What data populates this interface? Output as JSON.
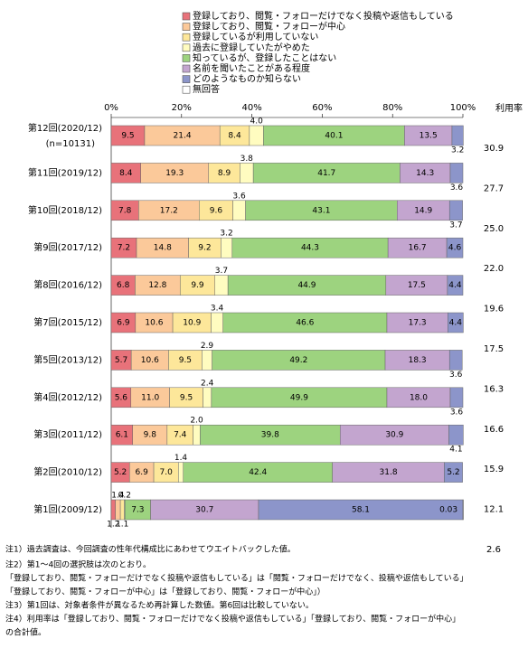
{
  "chart_data": {
    "type": "stacked-bar-horizontal",
    "categories": [
      "第12回(2020/12)",
      "第11回(2019/12)",
      "第10回(2018/12)",
      "第9回(2017/12)",
      "第8回(2016/12)",
      "第7回(2015/12)",
      "第5回(2013/12)",
      "第4回(2012/12)",
      "第3回(2011/12)",
      "第2回(2010/12)",
      "第1回(2009/12)"
    ],
    "n_label": "(n=10131)",
    "xlim": [
      0,
      100
    ],
    "xticks": [
      {
        "value": 0,
        "label": "0%"
      },
      {
        "value": 20,
        "label": "20%"
      },
      {
        "value": 40,
        "label": "40%"
      },
      {
        "value": 60,
        "label": "60%"
      },
      {
        "value": 80,
        "label": "80%"
      },
      {
        "value": 100,
        "label": "100%"
      }
    ],
    "series": [
      {
        "name": "登録しており、閲覧・フォローだけでなく投稿や返信もしている",
        "color": "#e8727a",
        "values": [
          9.5,
          8.4,
          7.8,
          7.2,
          6.8,
          6.9,
          5.7,
          5.6,
          6.1,
          5.2,
          1.2
        ],
        "value_labels": [
          "9.5",
          "8.4",
          "7.8",
          "7.2",
          "6.8",
          "6.9",
          "5.7",
          "5.6",
          "6.1",
          "5.2",
          "1.2"
        ]
      },
      {
        "name": "登録しており、閲覧・フォローが中心",
        "color": "#fbc99a",
        "values": [
          21.4,
          19.3,
          17.2,
          14.8,
          12.8,
          10.6,
          10.6,
          11.0,
          9.8,
          6.9,
          1.4
        ],
        "value_labels": [
          "21.4",
          "19.3",
          "17.2",
          "14.8",
          "12.8",
          "10.6",
          "10.6",
          "11.0",
          "9.8",
          "6.9",
          "1.4"
        ]
      },
      {
        "name": "登録しているが利用していない",
        "color": "#fde79a",
        "values": [
          8.4,
          8.9,
          9.6,
          9.2,
          9.9,
          10.9,
          9.5,
          9.5,
          7.4,
          7.0,
          1.1
        ],
        "value_labels": [
          "8.4",
          "8.9",
          "9.6",
          "9.2",
          "9.9",
          "10.9",
          "9.5",
          "9.5",
          "7.4",
          "7.0",
          "1.1"
        ]
      },
      {
        "name": "過去に登録していたがやめた",
        "color": "#fffcc0",
        "values": [
          4.0,
          3.8,
          3.6,
          3.2,
          3.7,
          3.4,
          2.9,
          2.4,
          2.0,
          1.4,
          0.2
        ],
        "value_labels": [
          "4.0",
          "3.8",
          "3.6",
          "3.2",
          "3.7",
          "3.4",
          "2.9",
          "2.4",
          "2.0",
          "1.4",
          "0.2"
        ]
      },
      {
        "name": "知っているが、登録したことはない",
        "color": "#9dd37f",
        "values": [
          40.1,
          41.7,
          43.1,
          44.3,
          44.9,
          46.6,
          49.2,
          49.9,
          39.8,
          42.4,
          7.3
        ],
        "value_labels": [
          "40.1",
          "41.7",
          "43.1",
          "44.3",
          "44.9",
          "46.6",
          "49.2",
          "49.9",
          "39.8",
          "42.4",
          "7.3"
        ]
      },
      {
        "name": "名前を聞いたことがある程度",
        "color": "#c3a5cf",
        "values": [
          13.5,
          14.3,
          14.9,
          16.7,
          17.5,
          17.3,
          18.3,
          18.0,
          30.9,
          31.8,
          30.7
        ],
        "value_labels": [
          "13.5",
          "14.3",
          "14.9",
          "16.7",
          "17.5",
          "17.3",
          "18.3",
          "18.0",
          "30.9",
          "31.8",
          "30.7"
        ]
      },
      {
        "name": "どのようなものか知らない",
        "color": "#8c95ca",
        "values": [
          3.2,
          3.6,
          3.7,
          4.6,
          4.4,
          4.4,
          3.6,
          3.6,
          4.1,
          5.2,
          58.1
        ],
        "value_labels": [
          "3.2",
          "3.6",
          "3.7",
          "4.6",
          "4.4",
          "4.4",
          "3.6",
          "3.6",
          "4.1",
          "5.2",
          "58.1"
        ]
      },
      {
        "name": "無回答",
        "color": "#ffffff",
        "values": [
          null,
          null,
          null,
          null,
          null,
          null,
          null,
          null,
          null,
          null,
          0.03
        ],
        "value_labels": [
          null,
          null,
          null,
          null,
          null,
          null,
          null,
          null,
          null,
          null,
          "0.03"
        ]
      }
    ],
    "utilization": {
      "label": "利用率",
      "values": [
        30.9,
        27.7,
        25.0,
        22.0,
        19.6,
        17.5,
        16.3,
        16.6,
        15.9,
        12.1,
        2.6
      ],
      "value_labels": [
        "30.9",
        "27.7",
        "25.0",
        "22.0",
        "19.6",
        "17.5",
        "16.3",
        "16.6",
        "15.9",
        "12.1",
        "2.6"
      ]
    },
    "notes": [
      "注1）過去調査は、今回調査の性年代構成比にあわせてウエイトバックした値。",
      "注2）第1～4回の選択肢は次のとおり。",
      "「登録しており、閲覧・フォローだけでなく投稿や返信もしている」は「閲覧・フォローだけでなく、投稿や返信もしている」",
      "「登録しており、閲覧・フォローが中心」は「登録しており、閲覧・フォローが中心」）",
      "注3）第1回は、対象者条件が異なるため再計算した数値。第6回は比較していない。",
      "注4）利用率は「登録しており、閲覧・フォローだけでなく投稿や返信もしている」「登録しており、閲覧・フォローが中心」",
      "の合計値。"
    ]
  }
}
